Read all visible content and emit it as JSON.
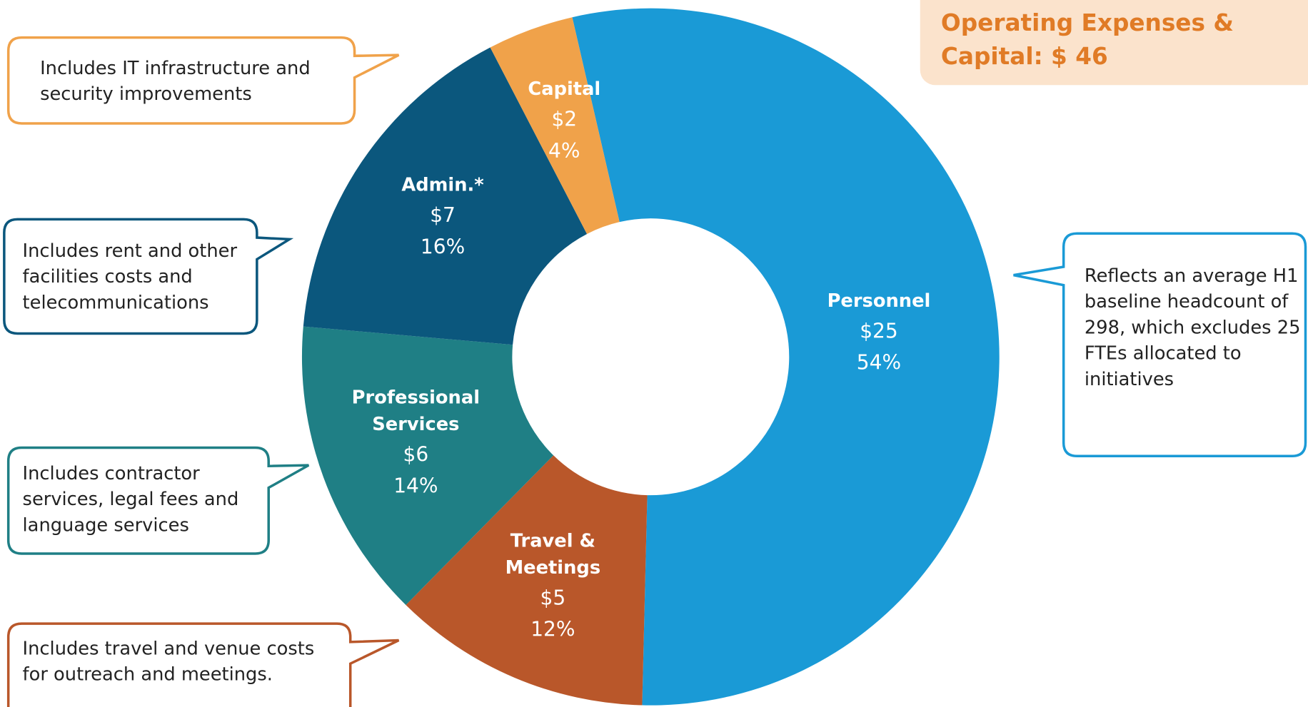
{
  "chart_data": {
    "type": "donut",
    "title": "Operating Expenses & Capital: $ 46",
    "categories": [
      "Personnel",
      "Travel & Meetings",
      "Professional Services",
      "Admin.*",
      "Capital"
    ],
    "values": [
      25,
      5,
      6,
      7,
      2
    ],
    "value_labels": [
      "$25",
      "$5",
      "$6",
      "$7",
      "$2"
    ],
    "percentages": [
      54,
      12,
      14,
      16,
      4
    ],
    "percentage_labels": [
      "54%",
      "12%",
      "14%",
      "16%",
      "4%"
    ],
    "colors": [
      "#1a9ad6",
      "#b9572a",
      "#1f7f85",
      "#0b577d",
      "#f0a24a"
    ],
    "annotations": [
      {
        "text": "Reflects an average H1 baseline headcount of 298, which excludes 25 FTEs allocated to initiatives",
        "color": "#1a9ad6"
      },
      {
        "text": "Includes travel and venue costs for outreach and meetings.",
        "color": "#b9572a"
      },
      {
        "text": "Includes contractor services, legal fees and language services",
        "color": "#1f7f85"
      },
      {
        "text": "Includes rent and other facilities costs and telecommunications",
        "color": "#0b577d"
      },
      {
        "text": "Includes IT infrastructure and security improvements",
        "color": "#f0a24a"
      }
    ]
  }
}
